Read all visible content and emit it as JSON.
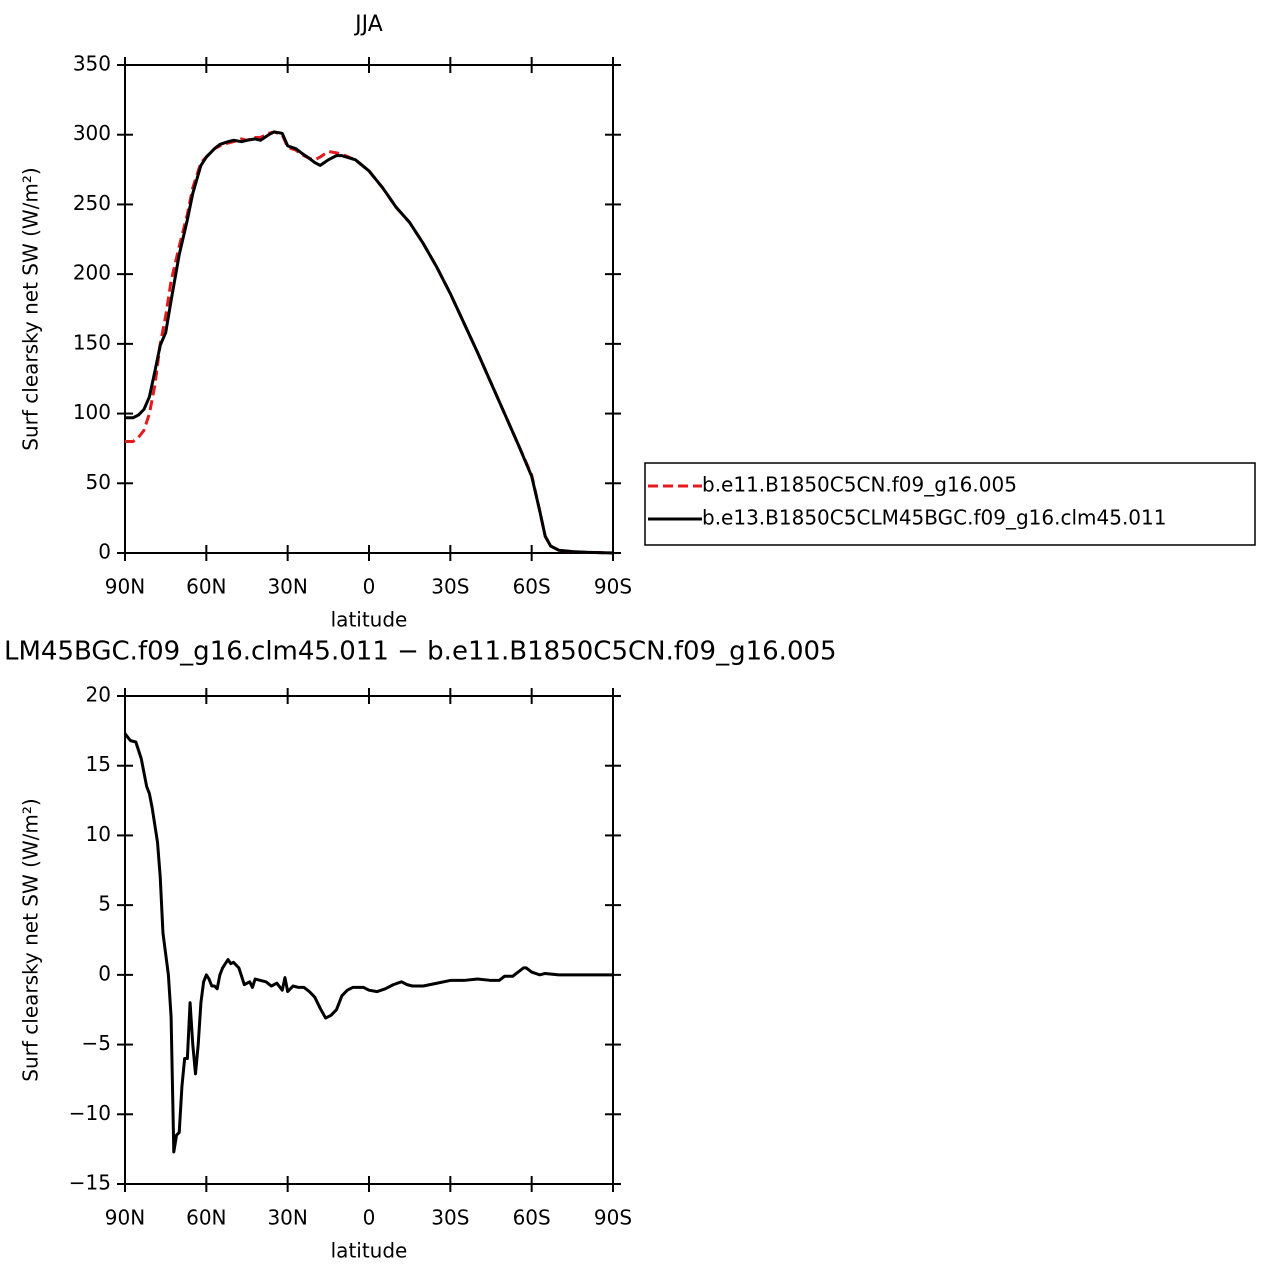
{
  "chart_data": [
    {
      "type": "line",
      "title": "JJA",
      "xlabel": "latitude",
      "ylabel": "Surf clearsky net SW (W/m²)",
      "x": [
        90,
        87,
        85,
        83,
        81,
        79,
        77,
        75,
        73,
        70,
        67,
        65,
        62,
        60,
        57,
        55,
        52,
        50,
        47,
        45,
        42,
        40,
        37,
        35,
        32,
        30,
        27,
        25,
        22,
        20,
        18,
        15,
        12,
        10,
        5,
        0,
        -5,
        -10,
        -15,
        -20,
        -25,
        -30,
        -35,
        -40,
        -45,
        -50,
        -55,
        -60,
        -63,
        -65,
        -67,
        -70,
        -75,
        -80,
        -90
      ],
      "series": [
        {
          "name": "b.e11.B1850C5CN.f09_g16.005",
          "color": "#e41a1c",
          "line_style": "dashed",
          "values": [
            80,
            80,
            83,
            88,
            100,
            120,
            150,
            170,
            195,
            220,
            243,
            262,
            280,
            284,
            290,
            292,
            294,
            295,
            297,
            296,
            298,
            298,
            301,
            302,
            300,
            291,
            289,
            286,
            283,
            282,
            284,
            288,
            287,
            286,
            282,
            274,
            262,
            248,
            237,
            222,
            205,
            186,
            165,
            144,
            122,
            100,
            78,
            56,
            30,
            12,
            5,
            2,
            1,
            0.5,
            0
          ]
        },
        {
          "name": "b.e13.B1850C5CLM45BGC.f09_g16.clm45.011",
          "color": "#000000",
          "line_style": "solid",
          "values": [
            97,
            97,
            99,
            103,
            112,
            130,
            149,
            158,
            181,
            214,
            239,
            258,
            278,
            284,
            290,
            293,
            295,
            296,
            295,
            296,
            297,
            296,
            300,
            302,
            301,
            292,
            290,
            287,
            283,
            280,
            278,
            282,
            285,
            285,
            282,
            274,
            262,
            248,
            237,
            222,
            205,
            186,
            165,
            144,
            122,
            100,
            78,
            55,
            30,
            12,
            5,
            2,
            1,
            0.5,
            0
          ]
        }
      ],
      "xlim": [
        90,
        -90
      ],
      "xticks": [
        {
          "value": 90,
          "label": "90N"
        },
        {
          "value": 60,
          "label": "60N"
        },
        {
          "value": 30,
          "label": "30N"
        },
        0,
        {
          "value": -30,
          "label": "30S"
        },
        {
          "value": -60,
          "label": "60S"
        },
        {
          "value": -90,
          "label": "90S"
        }
      ],
      "ylim": [
        0,
        350
      ],
      "yticks": [
        0,
        50,
        100,
        150,
        200,
        250,
        300,
        350
      ],
      "legend": "right"
    },
    {
      "type": "line",
      "title": "LM45BGC.f09_g16.clm45.011 − b.e11.B1850C5CN.f09_g16.005",
      "xlabel": "latitude",
      "ylabel": "Surf clearsky net SW (W/m²)",
      "x": [
        90,
        88,
        86,
        84,
        82,
        81,
        80,
        78,
        77,
        76,
        75,
        74,
        73,
        72,
        71,
        70,
        69,
        68,
        67,
        66,
        65,
        64,
        63,
        62,
        61,
        60,
        59,
        58,
        57,
        56,
        55,
        54,
        53,
        52,
        51,
        50,
        48,
        46,
        44,
        43,
        42,
        40,
        38,
        36,
        34,
        32,
        31,
        30,
        28,
        26,
        24,
        22,
        20,
        18,
        16,
        14,
        12,
        10,
        8,
        6,
        2,
        0,
        -3,
        -6,
        -9,
        -12,
        -14,
        -16,
        -20,
        -25,
        -30,
        -35,
        -40,
        -45,
        -48,
        -50,
        -53,
        -55,
        -57,
        -58,
        -60,
        -63,
        -65,
        -70,
        -90
      ],
      "series": [
        {
          "color": "#000000",
          "line_style": "solid",
          "values": [
            17.3,
            16.8,
            16.7,
            15.5,
            13.5,
            13,
            12,
            9.5,
            7,
            3,
            1.5,
            0,
            -3,
            -12.7,
            -11.5,
            -11.3,
            -8,
            -6,
            -6,
            -2,
            -5,
            -7.1,
            -5,
            -2,
            -0.5,
            0,
            -0.3,
            -0.8,
            -0.8,
            -1,
            0,
            0.5,
            0.8,
            1.1,
            0.8,
            0.9,
            0.5,
            -0.7,
            -0.5,
            -0.9,
            -0.3,
            -0.4,
            -0.5,
            -0.8,
            -0.6,
            -1.1,
            -0.2,
            -1.2,
            -0.8,
            -0.9,
            -0.9,
            -1.2,
            -1.6,
            -2.4,
            -3.1,
            -2.9,
            -2.5,
            -1.5,
            -1.1,
            -0.9,
            -0.9,
            -1.1,
            -1.2,
            -1,
            -0.7,
            -0.5,
            -0.7,
            -0.8,
            -0.8,
            -0.6,
            -0.4,
            -0.4,
            -0.3,
            -0.4,
            -0.4,
            -0.1,
            -0.1,
            0.2,
            0.5,
            0.5,
            0.2,
            0,
            0.1,
            0,
            0
          ]
        }
      ],
      "xlim": [
        90,
        -90
      ],
      "xticks": [
        {
          "value": 90,
          "label": "90N"
        },
        {
          "value": 60,
          "label": "60N"
        },
        {
          "value": 30,
          "label": "30N"
        },
        0,
        {
          "value": -30,
          "label": "30S"
        },
        {
          "value": -60,
          "label": "60S"
        },
        {
          "value": -90,
          "label": "90S"
        }
      ],
      "ylim": [
        -15,
        20
      ],
      "yticks": [
        {
          "value": -15,
          "label": "−15"
        },
        {
          "value": -10,
          "label": "−10"
        },
        {
          "value": -5,
          "label": "−5"
        },
        0,
        5,
        10,
        15,
        20
      ]
    }
  ]
}
